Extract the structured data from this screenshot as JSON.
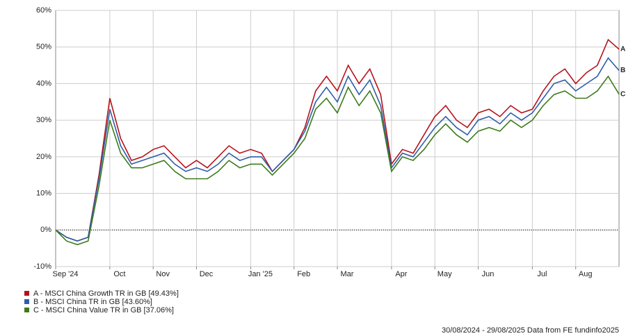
{
  "chart_data": {
    "type": "line",
    "categories": [
      "Sep '24",
      null,
      null,
      null,
      null,
      "Oct",
      null,
      null,
      null,
      "Nov",
      null,
      null,
      null,
      "Dec",
      null,
      null,
      null,
      null,
      "Jan '25",
      null,
      null,
      null,
      "Feb",
      null,
      null,
      null,
      "Mar",
      null,
      null,
      null,
      null,
      "Apr",
      null,
      null,
      null,
      "May",
      null,
      null,
      null,
      "Jun",
      null,
      null,
      null,
      null,
      "Jul",
      null,
      null,
      null,
      "Aug",
      null,
      null,
      null,
      null
    ],
    "series": [
      {
        "name": "A - MSCI China Growth TR in GB [49.43%]",
        "label": "A",
        "color": "#b5121b",
        "values": [
          0,
          -2,
          -3,
          -2,
          15,
          36,
          25,
          19,
          20,
          22,
          23,
          20,
          17,
          19,
          17,
          20,
          23,
          21,
          22,
          21,
          16,
          19,
          22,
          28,
          38,
          42,
          38,
          45,
          40,
          44,
          37,
          18,
          22,
          21,
          26,
          31,
          34,
          30,
          28,
          32,
          33,
          31,
          34,
          32,
          33,
          38,
          42,
          44,
          40,
          43,
          45,
          52,
          49.4
        ]
      },
      {
        "name": "B - MSCI China TR in GB [43.60%]",
        "label": "B",
        "color": "#2e5ea8",
        "values": [
          0,
          -2,
          -3,
          -2,
          14,
          33,
          23,
          18,
          19,
          20,
          21,
          18,
          16,
          17,
          16,
          18,
          21,
          19,
          20,
          20,
          16,
          19,
          22,
          27,
          35,
          39,
          35,
          42,
          37,
          41,
          34,
          17,
          21,
          20,
          24,
          28,
          31,
          28,
          26,
          30,
          31,
          29,
          32,
          30,
          32,
          36,
          40,
          41,
          38,
          40,
          42,
          47,
          43.6
        ]
      },
      {
        "name": "C - MSCI China Value TR in GB [37.06%]",
        "label": "C",
        "color": "#3d7a1a",
        "values": [
          0,
          -3,
          -4,
          -3,
          12,
          30,
          21,
          17,
          17,
          18,
          19,
          16,
          14,
          14,
          14,
          16,
          19,
          17,
          18,
          18,
          15,
          18,
          21,
          25,
          33,
          36,
          32,
          39,
          34,
          38,
          32,
          16,
          20,
          19,
          22,
          26,
          29,
          26,
          24,
          27,
          28,
          27,
          30,
          28,
          30,
          34,
          37,
          38,
          36,
          36,
          38,
          42,
          37.1
        ]
      }
    ],
    "ylim": [
      -10,
      60
    ],
    "yticks": [
      {
        "value": -10,
        "label": "-10%"
      },
      {
        "value": 0,
        "label": "0%"
      },
      {
        "value": 10,
        "label": "10%"
      },
      {
        "value": 20,
        "label": "20%"
      },
      {
        "value": 30,
        "label": "30%"
      },
      {
        "value": 40,
        "label": "40%"
      },
      {
        "value": 50,
        "label": "50%"
      },
      {
        "value": 60,
        "label": "60%"
      }
    ],
    "grid": true,
    "footer": "30/08/2024 - 29/08/2025 Data from FE fundinfo2025"
  }
}
